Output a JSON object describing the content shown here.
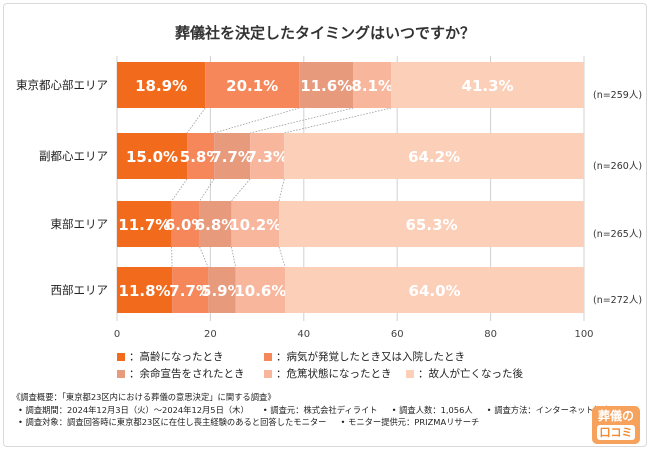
{
  "chart_data": {
    "type": "bar",
    "orientation": "horizontal-stacked-100",
    "title": "葬儀社を決定したタイミングはいつですか？",
    "categories": [
      "東京都心部エリア",
      "副都心エリア",
      "東部エリア",
      "西部エリア"
    ],
    "n_labels": [
      "(n=259人)",
      "(n=260人)",
      "(n=265人)",
      "(n=272人)"
    ],
    "series": [
      {
        "name": "高齢になったとき",
        "color": "#f26b1d",
        "values": [
          18.9,
          15.0,
          11.7,
          11.8
        ]
      },
      {
        "name": "病気が発覚したとき又は入院したとき",
        "color": "#f5875a",
        "values": [
          20.1,
          5.8,
          6.0,
          7.7
        ]
      },
      {
        "name": "余命宣告をされたとき",
        "color": "#e89a7c",
        "values": [
          11.6,
          7.7,
          6.8,
          5.9
        ]
      },
      {
        "name": "危篤状態になったとき",
        "color": "#f8b79d",
        "values": [
          8.1,
          7.3,
          10.2,
          10.6
        ]
      },
      {
        "name": "故人が亡くなった後",
        "color": "#fbcfb8",
        "values": [
          41.3,
          64.2,
          65.3,
          64.0
        ]
      }
    ],
    "data_labels": [
      [
        "18.9%",
        "20.1%",
        "11.6%",
        "8.1%",
        "41.3%"
      ],
      [
        "15.0%",
        "5.8%",
        "7.7%",
        "7.3%",
        "64.2%"
      ],
      [
        "11.7%",
        "6.0%",
        "6.8%",
        "10.2%",
        "65.3%"
      ],
      [
        "11.8%",
        "7.7%",
        "5.9%",
        "10.6%",
        "64.0%"
      ]
    ],
    "xticks": [
      "0",
      "20",
      "40",
      "60",
      "80",
      "100"
    ],
    "xlim": [
      0,
      100
    ],
    "grid": true,
    "legend_position": "bottom"
  },
  "legend_prefix": "：",
  "notes": {
    "line1": "《調査概要：「東京都23区内における葬儀の意思決定」に関する調査》",
    "line2": [
      "• 調査期間：2024年12月3日（火）〜2024年12月5日（木）",
      "• 調査元：株式会社ディライト",
      "• 調査人数：1,056人",
      "• 調査方法：インターネット調査"
    ],
    "line3": [
      "• 調査対象：調査回答時に東京都23区に在住し喪主経験のあると回答したモニター",
      "• モニター提供元：PRIZMAリサーチ"
    ]
  },
  "logo": {
    "line1": "葬儀の",
    "line2": "口コミ"
  }
}
